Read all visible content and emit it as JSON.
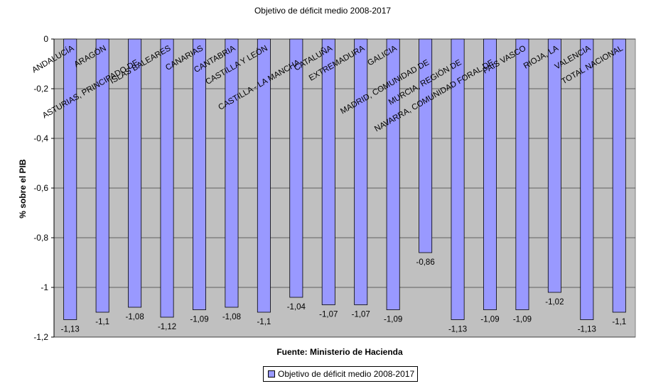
{
  "chart_data": {
    "type": "bar",
    "title": "Objetivo de déficit medio 2008-2017",
    "xlabel": "Fuente: Ministerio de Hacienda",
    "ylabel": "% sobre el PIB",
    "ylim": [
      -1.2,
      0
    ],
    "yticks": [
      "0",
      "-0,2",
      "-0,4",
      "-0,6",
      "-0,8",
      "-1",
      "-1,2"
    ],
    "ytick_values": [
      0,
      -0.2,
      -0.4,
      -0.6,
      -0.8,
      -1,
      -1.2
    ],
    "grid": true,
    "legend_position": "bottom",
    "categories": [
      "ANDALUCÍA",
      "ARAGÓN",
      "ASTURIAS, PRINCIPADO DE",
      "ISLAS BALEARES",
      "CANARIAS",
      "CANTABRIA",
      "CASTILLA Y LEÓN",
      "CASTILLA - LA MANCHA",
      "CATALUÑA",
      "EXTREMADURA",
      "GALICIA",
      "MADRID, COMUNIDAD DE",
      "MURCIA, REGIÓN DE",
      "NAVARRA, COMUNIDAD FORAL DE",
      "PAÍS VASCO",
      "RIOJA, LA",
      "VALENCIA",
      "TOTAL NACIONAL"
    ],
    "series": [
      {
        "name": "Objetivo de déficit medio 2008-2017",
        "values": [
          -1.13,
          -1.1,
          -1.08,
          -1.12,
          -1.09,
          -1.08,
          -1.1,
          -1.04,
          -1.07,
          -1.07,
          -1.09,
          -0.86,
          -1.13,
          -1.09,
          -1.09,
          -1.02,
          -1.13,
          -1.1
        ],
        "labels": [
          "-1,13",
          "-1,1",
          "-1,08",
          "-1,12",
          "-1,09",
          "-1,08",
          "-1,1",
          "-1,04",
          "-1,07",
          "-1,07",
          "-1,09",
          "-0,86",
          "-1,13",
          "-1,09",
          "-1,09",
          "-1,02",
          "-1,13",
          "-1,1"
        ]
      }
    ],
    "colors": {
      "bar": "#9999ff",
      "plot_bg": "#c0c0c0",
      "grid": "#000000"
    }
  }
}
